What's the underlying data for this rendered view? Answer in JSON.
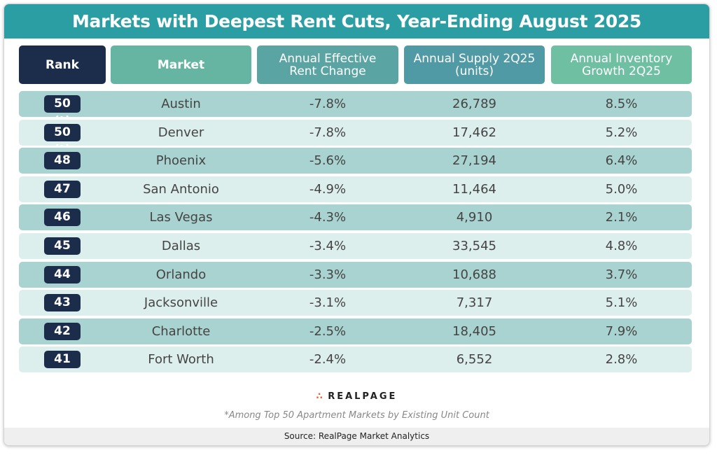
{
  "chart_data": {
    "type": "table",
    "title": "Markets with Deepest Rent Cuts, Year-Ending August 2025",
    "columns": [
      "Rank",
      "Market",
      "Annual Effective Rent Change",
      "Annual Supply 2Q25 (units)",
      "Annual Inventory Growth 2Q25"
    ],
    "rows": [
      [
        "50 (t)",
        "Austin",
        "-7.8%",
        "26,789",
        "8.5%"
      ],
      [
        "50 (t)",
        "Denver",
        "-7.8%",
        "17,462",
        "5.2%"
      ],
      [
        "48",
        "Phoenix",
        "-5.6%",
        "27,194",
        "6.4%"
      ],
      [
        "47",
        "San Antonio",
        "-4.9%",
        "11,464",
        "5.0%"
      ],
      [
        "46",
        "Las Vegas",
        "-4.3%",
        "4,910",
        "2.1%"
      ],
      [
        "45",
        "Dallas",
        "-3.4%",
        "33,545",
        "4.8%"
      ],
      [
        "44",
        "Orlando",
        "-3.3%",
        "10,688",
        "3.7%"
      ],
      [
        "43",
        "Jacksonville",
        "-3.1%",
        "7,317",
        "5.1%"
      ],
      [
        "42",
        "Charlotte",
        "-2.5%",
        "18,405",
        "7.9%"
      ],
      [
        "41",
        "Fort Worth",
        "-2.4%",
        "6,552",
        "2.8%"
      ]
    ]
  },
  "header_colors": [
    "#1b2d4a",
    "#66b5a3",
    "#5aa5a3",
    "#4f9aa5",
    "#6fbfa3"
  ],
  "row_colors": [
    "#a9d3d0",
    "#ddefed"
  ],
  "title_color": "#2b9ea3",
  "logo_text": "REALPAGE",
  "footnote": "*Among Top 50 Apartment Markets by Existing Unit Count",
  "source": "Source: RealPage Market Analytics"
}
